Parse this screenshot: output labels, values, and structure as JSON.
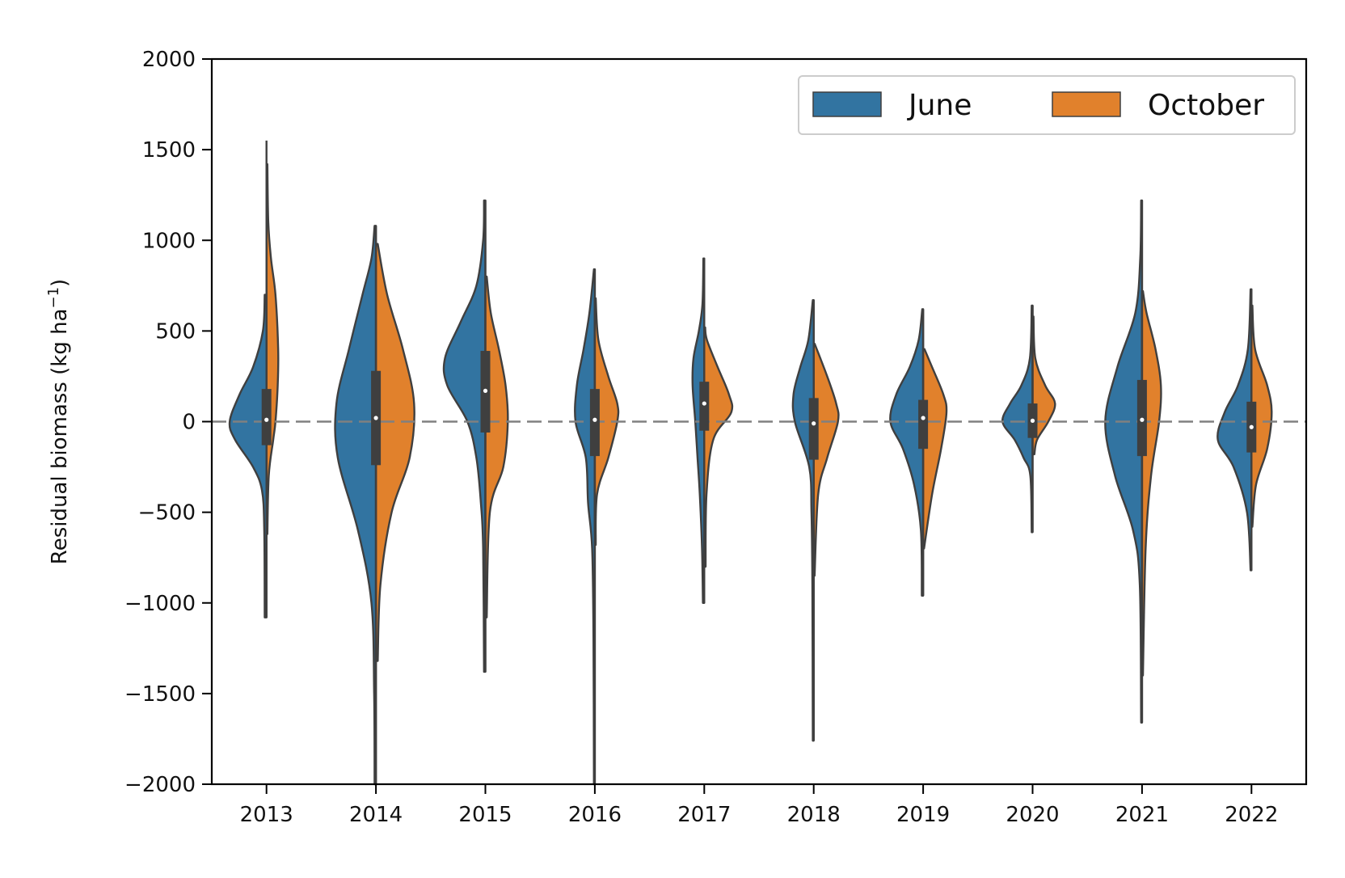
{
  "chart_data": {
    "type": "violin",
    "ylabel": "Residual biomass (kg ha",
    "ylabel_sup": "−1",
    "ylabel_close": ")",
    "ylim": [
      -2000,
      2000
    ],
    "yticks": [
      2000,
      1500,
      1000,
      500,
      0,
      -500,
      -1000,
      -1500,
      -2000
    ],
    "ytick_labels": [
      "2000",
      "1500",
      "1000",
      "500",
      "0",
      "−500",
      "−1000",
      "−1500",
      "−2000"
    ],
    "reference_line": 0,
    "legend": {
      "placement": "top-right",
      "entries": [
        "June",
        "October"
      ]
    },
    "colors": {
      "June": "#3274a1",
      "October": "#e1812c",
      "outline": "#3f3f3f",
      "reference": "#808080"
    },
    "categories": [
      "2013",
      "2014",
      "2015",
      "2016",
      "2017",
      "2018",
      "2019",
      "2020",
      "2021",
      "2022"
    ],
    "series": [
      {
        "name": "June",
        "min": [
          -1080,
          -2000,
          -1380,
          -2000,
          -1000,
          -1760,
          -960,
          -610,
          -1660,
          -820
        ],
        "max": [
          1550,
          1080,
          1220,
          840,
          900,
          670,
          620,
          640,
          1220,
          730
        ],
        "profiles": [
          [
            [
              -1080,
              0.04
            ],
            [
              -600,
              0.05
            ],
            [
              -380,
              0.1
            ],
            [
              -250,
              0.3
            ],
            [
              -100,
              0.7
            ],
            [
              0,
              0.82
            ],
            [
              150,
              0.6
            ],
            [
              300,
              0.3
            ],
            [
              500,
              0.08
            ],
            [
              700,
              0.04
            ]
          ],
          [
            [
              -2000,
              0.03
            ],
            [
              -1500,
              0.04
            ],
            [
              -1000,
              0.1
            ],
            [
              -600,
              0.4
            ],
            [
              -200,
              0.85
            ],
            [
              100,
              0.88
            ],
            [
              400,
              0.6
            ],
            [
              700,
              0.3
            ],
            [
              900,
              0.1
            ],
            [
              1080,
              0.03
            ]
          ],
          [
            [
              -1380,
              0.03
            ],
            [
              -700,
              0.05
            ],
            [
              -450,
              0.1
            ],
            [
              -200,
              0.2
            ],
            [
              0,
              0.4
            ],
            [
              200,
              0.85
            ],
            [
              350,
              0.9
            ],
            [
              550,
              0.55
            ],
            [
              750,
              0.2
            ],
            [
              1000,
              0.05
            ],
            [
              1220,
              0.03
            ]
          ],
          [
            [
              -2000,
              0.02
            ],
            [
              -1200,
              0.03
            ],
            [
              -700,
              0.06
            ],
            [
              -450,
              0.15
            ],
            [
              -200,
              0.2
            ],
            [
              0,
              0.43
            ],
            [
              200,
              0.4
            ],
            [
              400,
              0.25
            ],
            [
              600,
              0.12
            ],
            [
              840,
              0.02
            ]
          ],
          [
            [
              -1000,
              0.03
            ],
            [
              -700,
              0.05
            ],
            [
              -400,
              0.1
            ],
            [
              -200,
              0.15
            ],
            [
              0,
              0.2
            ],
            [
              200,
              0.26
            ],
            [
              350,
              0.24
            ],
            [
              500,
              0.12
            ],
            [
              650,
              0.04
            ],
            [
              900,
              0.02
            ]
          ],
          [
            [
              -1760,
              0.02
            ],
            [
              -900,
              0.03
            ],
            [
              -500,
              0.05
            ],
            [
              -250,
              0.1
            ],
            [
              0,
              0.42
            ],
            [
              150,
              0.45
            ],
            [
              300,
              0.3
            ],
            [
              450,
              0.12
            ],
            [
              670,
              0.02
            ]
          ],
          [
            [
              -960,
              0.03
            ],
            [
              -600,
              0.05
            ],
            [
              -350,
              0.2
            ],
            [
              -150,
              0.45
            ],
            [
              0,
              0.73
            ],
            [
              150,
              0.6
            ],
            [
              300,
              0.3
            ],
            [
              450,
              0.1
            ],
            [
              620,
              0.02
            ]
          ],
          [
            [
              -610,
              0.02
            ],
            [
              -300,
              0.05
            ],
            [
              -200,
              0.2
            ],
            [
              -100,
              0.4
            ],
            [
              0,
              0.67
            ],
            [
              100,
              0.5
            ],
            [
              200,
              0.25
            ],
            [
              350,
              0.06
            ],
            [
              640,
              0.02
            ]
          ],
          [
            [
              -1660,
              0.02
            ],
            [
              -900,
              0.05
            ],
            [
              -600,
              0.2
            ],
            [
              -300,
              0.6
            ],
            [
              0,
              0.82
            ],
            [
              300,
              0.55
            ],
            [
              600,
              0.15
            ],
            [
              900,
              0.04
            ],
            [
              1220,
              0.02
            ]
          ],
          [
            [
              -820,
              0.02
            ],
            [
              -500,
              0.1
            ],
            [
              -250,
              0.4
            ],
            [
              -100,
              0.75
            ],
            [
              50,
              0.6
            ],
            [
              200,
              0.3
            ],
            [
              400,
              0.08
            ],
            [
              730,
              0.02
            ]
          ]
        ]
      },
      {
        "name": "October",
        "min": [
          -620,
          -1320,
          -1080,
          -680,
          -800,
          -850,
          -700,
          -180,
          -1400,
          -580
        ],
        "max": [
          1420,
          980,
          800,
          680,
          520,
          430,
          400,
          580,
          720,
          640
        ],
        "profiles": [
          [
            [
              -620,
              0.02
            ],
            [
              -300,
              0.05
            ],
            [
              -100,
              0.15
            ],
            [
              0,
              0.2
            ],
            [
              200,
              0.25
            ],
            [
              400,
              0.26
            ],
            [
              700,
              0.2
            ],
            [
              900,
              0.1
            ],
            [
              1100,
              0.04
            ],
            [
              1420,
              0.02
            ]
          ],
          [
            [
              -1320,
              0.04
            ],
            [
              -900,
              0.1
            ],
            [
              -500,
              0.35
            ],
            [
              -200,
              0.75
            ],
            [
              100,
              0.85
            ],
            [
              400,
              0.6
            ],
            [
              700,
              0.25
            ],
            [
              980,
              0.04
            ]
          ],
          [
            [
              -1080,
              0.03
            ],
            [
              -500,
              0.1
            ],
            [
              -250,
              0.4
            ],
            [
              0,
              0.5
            ],
            [
              200,
              0.45
            ],
            [
              400,
              0.3
            ],
            [
              600,
              0.12
            ],
            [
              800,
              0.03
            ]
          ],
          [
            [
              -680,
              0.02
            ],
            [
              -400,
              0.05
            ],
            [
              -200,
              0.3
            ],
            [
              0,
              0.5
            ],
            [
              100,
              0.5
            ],
            [
              250,
              0.3
            ],
            [
              450,
              0.08
            ],
            [
              680,
              0.02
            ]
          ],
          [
            [
              -800,
              0.03
            ],
            [
              -400,
              0.05
            ],
            [
              -100,
              0.2
            ],
            [
              50,
              0.6
            ],
            [
              150,
              0.55
            ],
            [
              300,
              0.3
            ],
            [
              450,
              0.06
            ],
            [
              520,
              0.02
            ]
          ],
          [
            [
              -850,
              0.02
            ],
            [
              -400,
              0.1
            ],
            [
              -200,
              0.3
            ],
            [
              0,
              0.54
            ],
            [
              100,
              0.5
            ],
            [
              250,
              0.3
            ],
            [
              430,
              0.02
            ]
          ],
          [
            [
              -700,
              0.02
            ],
            [
              -400,
              0.2
            ],
            [
              -150,
              0.4
            ],
            [
              50,
              0.52
            ],
            [
              150,
              0.45
            ],
            [
              300,
              0.2
            ],
            [
              400,
              0.03
            ]
          ],
          [
            [
              -180,
              0.04
            ],
            [
              -100,
              0.1
            ],
            [
              0,
              0.35
            ],
            [
              100,
              0.5
            ],
            [
              200,
              0.28
            ],
            [
              350,
              0.06
            ],
            [
              580,
              0.02
            ]
          ],
          [
            [
              -1400,
              0.02
            ],
            [
              -700,
              0.08
            ],
            [
              -300,
              0.2
            ],
            [
              0,
              0.38
            ],
            [
              200,
              0.42
            ],
            [
              400,
              0.3
            ],
            [
              600,
              0.1
            ],
            [
              720,
              0.02
            ]
          ],
          [
            [
              -580,
              0.02
            ],
            [
              -350,
              0.1
            ],
            [
              -150,
              0.35
            ],
            [
              50,
              0.45
            ],
            [
              200,
              0.35
            ],
            [
              400,
              0.08
            ],
            [
              640,
              0.02
            ]
          ]
        ]
      }
    ],
    "box": {
      "q1": [
        -130,
        -240,
        -60,
        -190,
        -50,
        -210,
        -150,
        -90,
        -190,
        -170
      ],
      "q3": [
        180,
        280,
        390,
        180,
        220,
        130,
        120,
        100,
        230,
        110
      ],
      "median": [
        10,
        20,
        170,
        10,
        100,
        -10,
        20,
        5,
        10,
        -30
      ]
    }
  }
}
